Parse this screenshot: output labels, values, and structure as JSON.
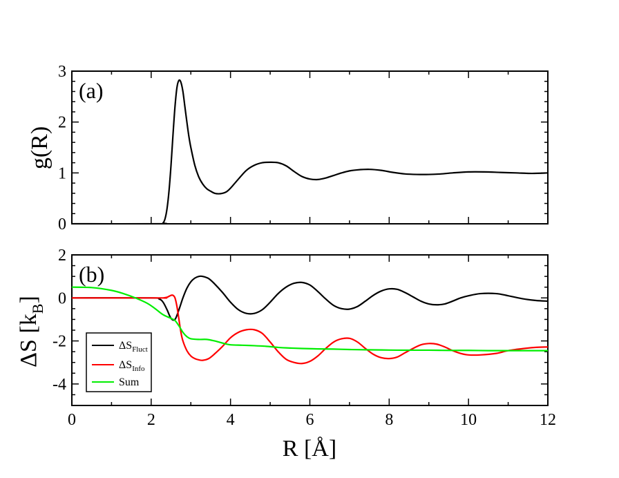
{
  "chart_data": [
    {
      "type": "line",
      "panel_label": "(a)",
      "title": "",
      "xlabel": "",
      "ylabel": "g(R)",
      "xlim": [
        0,
        12
      ],
      "ylim": [
        0,
        3
      ],
      "x_ticks": [
        "",
        "",
        "",
        "",
        "",
        "",
        ""
      ],
      "y_ticks": [
        "0",
        "1",
        "2",
        "3"
      ],
      "y_tick_values": [
        0,
        1,
        2,
        3
      ],
      "legend": null,
      "series": [
        {
          "name": "g(R)",
          "color": "#000000",
          "x": [
            0,
            2.2,
            2.3,
            2.35,
            2.4,
            2.45,
            2.5,
            2.55,
            2.6,
            2.65,
            2.7,
            2.75,
            2.8,
            2.85,
            2.9,
            2.95,
            3.0,
            3.1,
            3.2,
            3.3,
            3.4,
            3.5,
            3.6,
            3.7,
            3.8,
            3.9,
            4.0,
            4.2,
            4.4,
            4.6,
            4.8,
            5.0,
            5.2,
            5.4,
            5.6,
            5.8,
            6.0,
            6.2,
            6.4,
            6.6,
            6.8,
            7.0,
            7.2,
            7.5,
            7.8,
            8.1,
            8.4,
            8.7,
            9.0,
            9.3,
            9.6,
            10.0,
            10.4,
            10.8,
            11.2,
            11.6,
            12.0
          ],
          "y": [
            0,
            0,
            0.02,
            0.1,
            0.3,
            0.65,
            1.15,
            1.75,
            2.3,
            2.68,
            2.82,
            2.78,
            2.6,
            2.3,
            2.0,
            1.72,
            1.5,
            1.15,
            0.92,
            0.78,
            0.69,
            0.64,
            0.6,
            0.59,
            0.6,
            0.63,
            0.7,
            0.88,
            1.05,
            1.15,
            1.2,
            1.21,
            1.2,
            1.14,
            1.03,
            0.93,
            0.88,
            0.87,
            0.9,
            0.95,
            1.0,
            1.04,
            1.06,
            1.07,
            1.05,
            1.01,
            0.98,
            0.97,
            0.97,
            0.98,
            1.0,
            1.02,
            1.02,
            1.01,
            1.0,
            0.99,
            1.0
          ]
        }
      ]
    },
    {
      "type": "line",
      "panel_label": "(b)",
      "title": "",
      "xlabel": "R  [Å]",
      "ylabel": "ΔS  [k",
      "ylabel_sub": "B",
      "ylabel_close": "]",
      "xlim": [
        0,
        12
      ],
      "ylim": [
        -5,
        2
      ],
      "x_ticks": [
        "0",
        "2",
        "4",
        "6",
        "8",
        "10",
        "12"
      ],
      "x_tick_values": [
        0,
        2,
        4,
        6,
        8,
        10,
        12
      ],
      "y_ticks": [
        "-4",
        "-2",
        "0",
        "2"
      ],
      "y_tick_values": [
        -4,
        -2,
        0,
        2
      ],
      "legend": {
        "position": "bottom-left",
        "entries": [
          {
            "main": "ΔS",
            "sub": "Fluct",
            "color": "#000000"
          },
          {
            "main": "ΔS",
            "sub": "Info",
            "color": "#ff0000"
          },
          {
            "main": "Sum",
            "sub": "",
            "color": "#00ee00"
          }
        ]
      },
      "series": [
        {
          "name": "ΔS_Fluct",
          "color": "#000000",
          "x": [
            0,
            2.0,
            2.2,
            2.3,
            2.4,
            2.5,
            2.6,
            2.7,
            2.8,
            2.9,
            3.0,
            3.1,
            3.2,
            3.3,
            3.45,
            3.6,
            3.8,
            4.0,
            4.2,
            4.4,
            4.6,
            4.8,
            5.0,
            5.2,
            5.4,
            5.6,
            5.8,
            6.0,
            6.2,
            6.4,
            6.6,
            6.8,
            7.0,
            7.2,
            7.4,
            7.6,
            7.8,
            8.0,
            8.2,
            8.4,
            8.6,
            8.8,
            9.0,
            9.2,
            9.4,
            9.6,
            9.8,
            10.0,
            10.3,
            10.7,
            11.0,
            11.4,
            11.7,
            12.0
          ],
          "y": [
            0,
            0,
            -0.05,
            -0.2,
            -0.55,
            -0.95,
            -1.0,
            -0.55,
            0.0,
            0.45,
            0.75,
            0.92,
            1.0,
            1.0,
            0.9,
            0.65,
            0.25,
            -0.2,
            -0.55,
            -0.72,
            -0.72,
            -0.55,
            -0.2,
            0.2,
            0.5,
            0.68,
            0.72,
            0.6,
            0.3,
            -0.05,
            -0.35,
            -0.5,
            -0.52,
            -0.4,
            -0.15,
            0.12,
            0.32,
            0.42,
            0.4,
            0.25,
            0.05,
            -0.15,
            -0.28,
            -0.32,
            -0.28,
            -0.15,
            0.0,
            0.1,
            0.2,
            0.2,
            0.1,
            -0.05,
            -0.12,
            -0.15
          ]
        },
        {
          "name": "ΔS_Info",
          "color": "#ff0000",
          "x": [
            0,
            2.2,
            2.3,
            2.4,
            2.5,
            2.55,
            2.6,
            2.65,
            2.7,
            2.75,
            2.8,
            2.9,
            3.0,
            3.1,
            3.2,
            3.3,
            3.45,
            3.6,
            3.8,
            4.0,
            4.2,
            4.4,
            4.6,
            4.8,
            5.0,
            5.2,
            5.4,
            5.6,
            5.8,
            6.0,
            6.2,
            6.4,
            6.6,
            6.8,
            7.0,
            7.2,
            7.4,
            7.6,
            7.8,
            8.0,
            8.2,
            8.4,
            8.6,
            8.8,
            9.0,
            9.2,
            9.4,
            9.6,
            9.8,
            10.0,
            10.3,
            10.7,
            11.0,
            11.4,
            11.7,
            12.0
          ],
          "y": [
            0,
            0,
            0.0,
            0.03,
            0.12,
            0.12,
            0.0,
            -0.4,
            -1.0,
            -1.6,
            -2.0,
            -2.45,
            -2.7,
            -2.82,
            -2.88,
            -2.9,
            -2.82,
            -2.6,
            -2.25,
            -1.85,
            -1.6,
            -1.48,
            -1.48,
            -1.65,
            -2.05,
            -2.5,
            -2.85,
            -3.0,
            -3.05,
            -2.95,
            -2.7,
            -2.35,
            -2.05,
            -1.9,
            -1.88,
            -2.05,
            -2.35,
            -2.62,
            -2.78,
            -2.82,
            -2.75,
            -2.55,
            -2.35,
            -2.18,
            -2.12,
            -2.15,
            -2.28,
            -2.45,
            -2.58,
            -2.65,
            -2.65,
            -2.58,
            -2.45,
            -2.35,
            -2.3,
            -2.28
          ]
        },
        {
          "name": "Sum",
          "color": "#00ee00",
          "x": [
            0,
            0.5,
            1.0,
            1.3,
            1.6,
            1.9,
            2.1,
            2.3,
            2.5,
            2.6,
            2.7,
            2.8,
            2.9,
            3.0,
            3.2,
            3.4,
            3.6,
            3.8,
            4.0,
            4.3,
            4.6,
            4.9,
            5.2,
            5.5,
            5.8,
            6.2,
            6.6,
            7.0,
            7.4,
            7.8,
            8.2,
            8.6,
            9.0,
            9.5,
            10.0,
            10.5,
            11.0,
            11.5,
            12.0
          ],
          "y": [
            0.5,
            0.48,
            0.35,
            0.2,
            0.0,
            -0.25,
            -0.5,
            -0.78,
            -0.95,
            -1.05,
            -1.3,
            -1.6,
            -1.8,
            -1.9,
            -1.93,
            -1.93,
            -2.0,
            -2.1,
            -2.18,
            -2.2,
            -2.22,
            -2.25,
            -2.3,
            -2.33,
            -2.35,
            -2.37,
            -2.38,
            -2.4,
            -2.41,
            -2.42,
            -2.43,
            -2.43,
            -2.43,
            -2.44,
            -2.44,
            -2.45,
            -2.45,
            -2.45,
            -2.45
          ]
        }
      ]
    }
  ]
}
